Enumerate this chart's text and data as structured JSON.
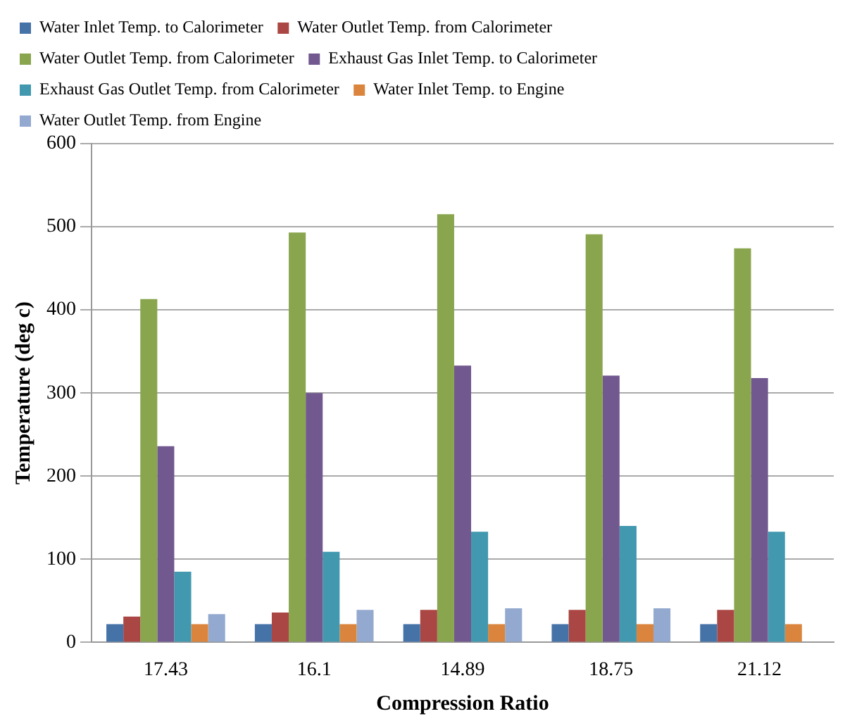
{
  "chart_data": {
    "type": "bar",
    "xlabel": "Compression Ratio",
    "ylabel": "Temperature (deg c)",
    "categories": [
      "17.43",
      "16.1",
      "14.89",
      "18.75",
      "21.12"
    ],
    "series": [
      {
        "name": "Water Inlet Temp. to Calorimeter",
        "color": "#4572a7",
        "values": [
          22,
          22,
          22,
          22,
          22
        ]
      },
      {
        "name": "Water Outlet Temp. from Calorimeter",
        "color": "#aa4643",
        "values": [
          31,
          36,
          39,
          39,
          39
        ]
      },
      {
        "name": "Water Outlet Temp. from Calorimeter",
        "color": "#89a54e",
        "values": [
          413,
          493,
          515,
          491,
          474
        ]
      },
      {
        "name": "Exhaust Gas Inlet Temp. to Calorimeter",
        "color": "#71588f",
        "values": [
          236,
          300,
          333,
          321,
          318
        ]
      },
      {
        "name": "Exhaust Gas Outlet Temp. from Calorimeter",
        "color": "#4198af",
        "values": [
          85,
          109,
          133,
          140,
          133
        ]
      },
      {
        "name": "Water Inlet Temp. to Engine",
        "color": "#db843d",
        "values": [
          22,
          22,
          22,
          22,
          22
        ]
      },
      {
        "name": "Water Outlet Temp. from Engine",
        "color": "#93a9cf",
        "values": [
          34,
          39,
          41,
          41,
          null
        ]
      }
    ],
    "ylim": [
      0,
      600
    ],
    "yticks": [
      0,
      100,
      200,
      300,
      400,
      500,
      600
    ],
    "grid": "y",
    "legend": "top"
  }
}
